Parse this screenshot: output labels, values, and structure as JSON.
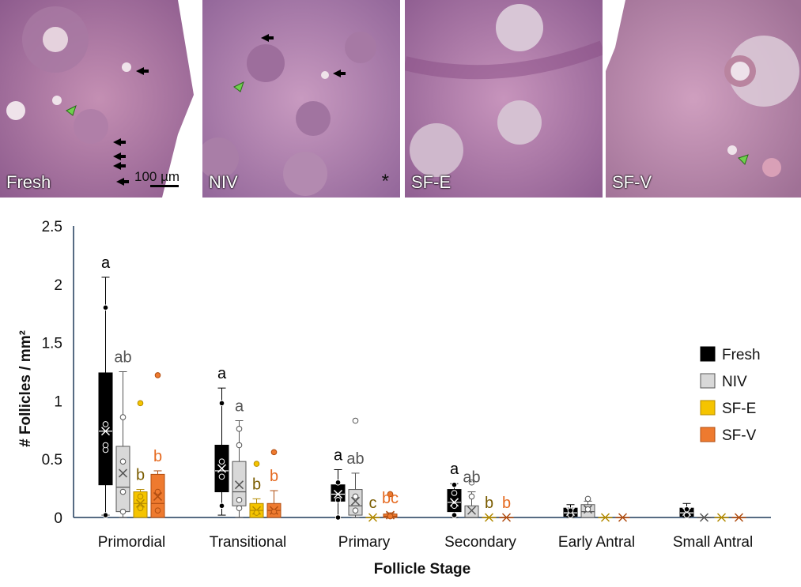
{
  "panels": [
    {
      "label": "Fresh",
      "scale_bar": "100 µm",
      "asterisk": ""
    },
    {
      "label": "NIV",
      "scale_bar": "",
      "asterisk": "*"
    },
    {
      "label": "SF-E",
      "scale_bar": "",
      "asterisk": ""
    },
    {
      "label": "SF-V",
      "scale_bar": "",
      "asterisk": ""
    }
  ],
  "chart_data": {
    "type": "box",
    "title": "",
    "xlabel": "Follicle Stage",
    "ylabel": "# Follicles / mm²",
    "ylim": [
      0,
      2.5
    ],
    "yticks": [
      "0",
      "0.5",
      "1",
      "1.5",
      "2",
      "2.5"
    ],
    "grid": false,
    "legend_position": "right",
    "categories": [
      "Primordial",
      "Transitional",
      "Primary",
      "Secondary",
      "Early Antral",
      "Small Antral"
    ],
    "series": [
      {
        "name": "Fresh",
        "fill": "#000000",
        "stroke": "#000000",
        "text_color": "#000000",
        "boxes": [
          {
            "min": 0.02,
            "q1": 0.28,
            "median": 0.74,
            "q3": 1.24,
            "max": 2.06,
            "mean": 0.74,
            "points": [
              0.02,
              0.58,
              0.62,
              0.8,
              1.8
            ],
            "letter": "a"
          },
          {
            "min": 0.02,
            "q1": 0.22,
            "median": 0.4,
            "q3": 0.62,
            "max": 1.11,
            "mean": 0.42,
            "points": [
              0.1,
              0.35,
              0.48,
              0.98
            ],
            "letter": "a"
          },
          {
            "min": 0.0,
            "q1": 0.14,
            "median": 0.2,
            "q3": 0.28,
            "max": 0.41,
            "mean": 0.2,
            "points": [
              0.0,
              0.15,
              0.3
            ],
            "letter": "a"
          },
          {
            "min": 0.0,
            "q1": 0.05,
            "median": 0.13,
            "q3": 0.24,
            "max": 0.29,
            "mean": 0.13,
            "points": [
              0.02,
              0.1,
              0.21,
              0.28
            ],
            "letter": "a"
          },
          {
            "min": 0.0,
            "q1": 0.01,
            "median": 0.04,
            "q3": 0.08,
            "max": 0.11,
            "mean": 0.05,
            "points": [
              0.02,
              0.06
            ],
            "letter": ""
          },
          {
            "min": 0.0,
            "q1": 0.01,
            "median": 0.04,
            "q3": 0.08,
            "max": 0.12,
            "mean": 0.05,
            "points": [
              0.02,
              0.07
            ],
            "letter": ""
          }
        ]
      },
      {
        "name": "NIV",
        "fill": "#d8d8d8",
        "stroke": "#555555",
        "text_color": "#555555",
        "boxes": [
          {
            "min": 0.0,
            "q1": 0.05,
            "median": 0.26,
            "q3": 0.61,
            "max": 1.25,
            "mean": 0.38,
            "points": [
              0.05,
              0.22,
              0.48,
              0.86
            ],
            "letter": "ab"
          },
          {
            "min": 0.0,
            "q1": 0.1,
            "median": 0.22,
            "q3": 0.48,
            "max": 0.83,
            "mean": 0.28,
            "points": [
              0.08,
              0.15,
              0.62,
              0.76
            ],
            "letter": "a"
          },
          {
            "min": 0.0,
            "q1": 0.02,
            "median": 0.1,
            "q3": 0.24,
            "max": 0.38,
            "mean": 0.14,
            "points": [
              0.06,
              0.18,
              0.83
            ],
            "letter": "ab"
          },
          {
            "min": 0.0,
            "q1": 0.0,
            "median": 0.0,
            "q3": 0.1,
            "max": 0.22,
            "mean": 0.06,
            "points": [
              0.18,
              0.3
            ],
            "letter": "ab"
          },
          {
            "min": 0.0,
            "q1": 0.0,
            "median": 0.05,
            "q3": 0.11,
            "max": 0.14,
            "mean": 0.07,
            "points": [
              0.07,
              0.16
            ],
            "letter": ""
          },
          {
            "min": 0.0,
            "q1": 0.0,
            "median": 0.0,
            "q3": 0.0,
            "max": 0.0,
            "mean": 0.0,
            "points": [],
            "letter": ""
          }
        ]
      },
      {
        "name": "SF-E",
        "fill": "#f5c400",
        "stroke": "#b38a00",
        "text_color": "#7a5c00",
        "boxes": [
          {
            "min": 0.0,
            "q1": 0.0,
            "median": 0.12,
            "q3": 0.22,
            "max": 0.24,
            "mean": 0.12,
            "points": [
              0.08,
              0.18,
              0.98
            ],
            "letter": "b"
          },
          {
            "min": 0.0,
            "q1": 0.0,
            "median": 0.06,
            "q3": 0.12,
            "max": 0.16,
            "mean": 0.06,
            "points": [
              0.04,
              0.46
            ],
            "letter": "b"
          },
          {
            "min": 0.0,
            "q1": 0.0,
            "median": 0.0,
            "q3": 0.0,
            "max": 0.0,
            "mean": 0.0,
            "points": [],
            "letter": "c"
          },
          {
            "min": 0.0,
            "q1": 0.0,
            "median": 0.0,
            "q3": 0.0,
            "max": 0.0,
            "mean": 0.0,
            "points": [],
            "letter": "b"
          },
          {
            "min": 0.0,
            "q1": 0.0,
            "median": 0.0,
            "q3": 0.0,
            "max": 0.0,
            "mean": 0.0,
            "points": [],
            "letter": ""
          },
          {
            "min": 0.0,
            "q1": 0.0,
            "median": 0.0,
            "q3": 0.0,
            "max": 0.0,
            "mean": 0.0,
            "points": [],
            "letter": ""
          }
        ]
      },
      {
        "name": "SF-V",
        "fill": "#ee7a2f",
        "stroke": "#b04d10",
        "text_color": "#e5691f",
        "boxes": [
          {
            "min": 0.0,
            "q1": 0.0,
            "median": 0.12,
            "q3": 0.37,
            "max": 0.4,
            "mean": 0.18,
            "points": [
              0.06,
              0.22,
              1.22
            ],
            "letter": "b"
          },
          {
            "min": 0.0,
            "q1": 0.0,
            "median": 0.06,
            "q3": 0.12,
            "max": 0.23,
            "mean": 0.06,
            "points": [
              0.05,
              0.56
            ],
            "letter": "b"
          },
          {
            "min": 0.0,
            "q1": 0.0,
            "median": 0.01,
            "q3": 0.03,
            "max": 0.04,
            "mean": 0.02,
            "points": [
              0.01,
              0.2
            ],
            "letter": "bc"
          },
          {
            "min": 0.0,
            "q1": 0.0,
            "median": 0.0,
            "q3": 0.0,
            "max": 0.0,
            "mean": 0.0,
            "points": [],
            "letter": "b"
          },
          {
            "min": 0.0,
            "q1": 0.0,
            "median": 0.0,
            "q3": 0.0,
            "max": 0.0,
            "mean": 0.0,
            "points": [],
            "letter": ""
          },
          {
            "min": 0.0,
            "q1": 0.0,
            "median": 0.0,
            "q3": 0.0,
            "max": 0.0,
            "mean": 0.0,
            "points": [],
            "letter": ""
          }
        ]
      }
    ]
  }
}
